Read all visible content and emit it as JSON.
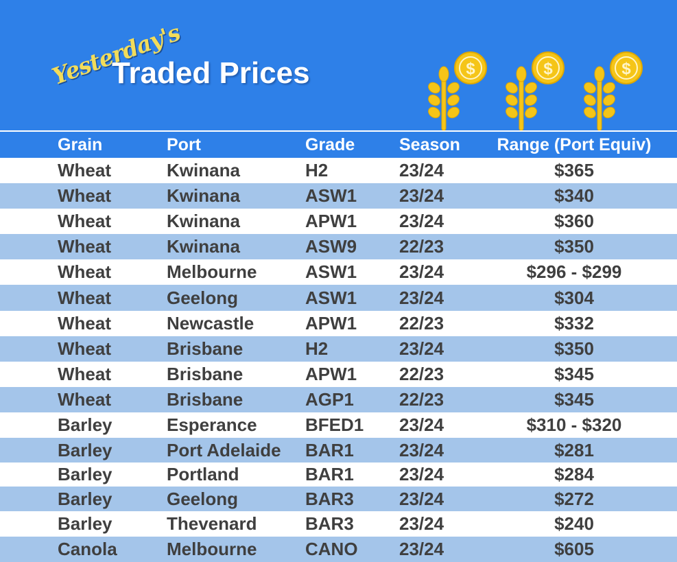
{
  "banner": {
    "script_title": "Yesterday's",
    "main_title": "Traded Prices",
    "icons": [
      "wheat-coin-icon",
      "wheat-coin-icon",
      "wheat-coin-icon"
    ],
    "background_color": "#2e80e8",
    "script_color": "#f2dc5a"
  },
  "table": {
    "headers": {
      "grain": "Grain",
      "port": "Port",
      "grade": "Grade",
      "season": "Season",
      "range": "Range (Port Equiv)"
    },
    "alt_row_color": "#a4c5ea",
    "rows": [
      {
        "grain": "Wheat",
        "port": "Kwinana",
        "grade": "H2",
        "season": "23/24",
        "range": "$365"
      },
      {
        "grain": "Wheat",
        "port": "Kwinana",
        "grade": "ASW1",
        "season": "23/24",
        "range": "$340"
      },
      {
        "grain": "Wheat",
        "port": "Kwinana",
        "grade": "APW1",
        "season": "23/24",
        "range": "$360"
      },
      {
        "grain": "Wheat",
        "port": "Kwinana",
        "grade": "ASW9",
        "season": "22/23",
        "range": "$350"
      },
      {
        "grain": "Wheat",
        "port": "Melbourne",
        "grade": "ASW1",
        "season": "23/24",
        "range": "$296 - $299"
      },
      {
        "grain": "Wheat",
        "port": "Geelong",
        "grade": "ASW1",
        "season": "23/24",
        "range": "$304"
      },
      {
        "grain": "Wheat",
        "port": "Newcastle",
        "grade": "APW1",
        "season": "22/23",
        "range": "$332"
      },
      {
        "grain": "Wheat",
        "port": "Brisbane",
        "grade": "H2",
        "season": "23/24",
        "range": "$350"
      },
      {
        "grain": "Wheat",
        "port": "Brisbane",
        "grade": "APW1",
        "season": "22/23",
        "range": "$345"
      },
      {
        "grain": "Wheat",
        "port": "Brisbane",
        "grade": "AGP1",
        "season": "22/23",
        "range": "$345"
      },
      {
        "grain": "Barley",
        "port": "Esperance",
        "grade": "BFED1",
        "season": "23/24",
        "range": "$310 - $320"
      },
      {
        "grain": "Barley",
        "port": "Port Adelaide",
        "grade": "BAR1",
        "season": "23/24",
        "range": "$281"
      },
      {
        "grain": "Barley",
        "port": "Portland",
        "grade": "BAR1",
        "season": "23/24",
        "range": "$284"
      },
      {
        "grain": "Barley",
        "port": "Geelong",
        "grade": "BAR3",
        "season": "23/24",
        "range": "$272"
      },
      {
        "grain": "Barley",
        "port": "Thevenard",
        "grade": "BAR3",
        "season": "23/24",
        "range": "$240"
      },
      {
        "grain": "Canola",
        "port": "Melbourne",
        "grade": "CANO",
        "season": "23/24",
        "range": "$605"
      }
    ]
  }
}
